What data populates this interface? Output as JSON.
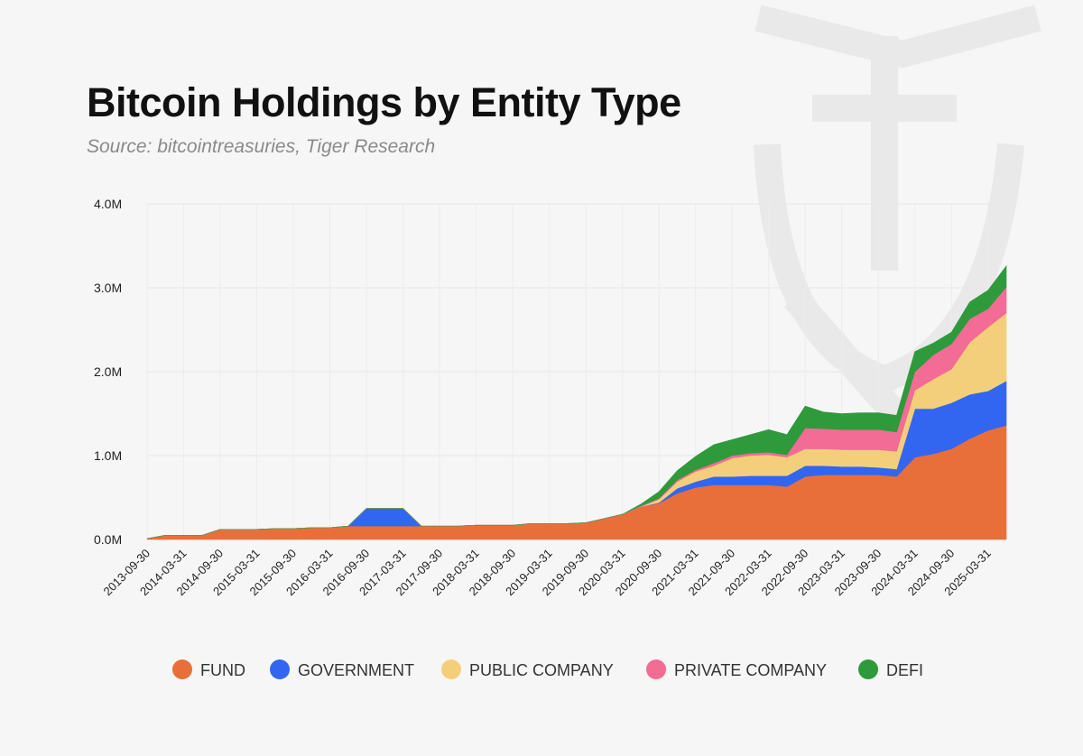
{
  "title": "Bitcoin Holdings by Entity Type",
  "subtitle": "Source: bitcointreasuries, Tiger Research",
  "chart_data": {
    "type": "area",
    "stacked": true,
    "title": "Bitcoin Holdings by Entity Type",
    "subtitle": "Source: bitcointreasuries, Tiger Research",
    "xlabel": "",
    "ylabel": "",
    "ylim": [
      0,
      4000000
    ],
    "y_ticks": [
      "0.0M",
      "1.0M",
      "2.0M",
      "3.0M",
      "4.0M"
    ],
    "x_tick_labels": [
      "2013-09-30",
      "2014-03-31",
      "2014-09-30",
      "2015-03-31",
      "2015-09-30",
      "2016-03-31",
      "2016-09-30",
      "2017-03-31",
      "2017-09-30",
      "2018-03-31",
      "2018-09-30",
      "2019-03-31",
      "2019-09-30",
      "2020-03-31",
      "2020-09-30",
      "2021-03-31",
      "2021-09-30",
      "2022-03-31",
      "2022-09-30",
      "2023-03-31",
      "2023-09-30",
      "2024-03-31",
      "2024-09-30",
      "2025-03-31"
    ],
    "grid": true,
    "legend_position": "bottom",
    "x": [
      "2013-09-30",
      "2013-12-31",
      "2014-03-31",
      "2014-06-30",
      "2014-09-30",
      "2014-12-31",
      "2015-03-31",
      "2015-06-30",
      "2015-09-30",
      "2015-12-31",
      "2016-03-31",
      "2016-06-30",
      "2016-09-30",
      "2016-12-31",
      "2017-03-31",
      "2017-06-30",
      "2017-09-30",
      "2017-12-31",
      "2018-03-31",
      "2018-06-30",
      "2018-09-30",
      "2018-12-31",
      "2019-03-31",
      "2019-06-30",
      "2019-09-30",
      "2019-12-31",
      "2020-03-31",
      "2020-06-30",
      "2020-09-30",
      "2020-12-31",
      "2021-03-31",
      "2021-06-30",
      "2021-09-30",
      "2021-12-31",
      "2022-03-31",
      "2022-06-30",
      "2022-09-30",
      "2022-12-31",
      "2023-03-31",
      "2023-06-30",
      "2023-09-30",
      "2023-12-31",
      "2024-03-31",
      "2024-06-30",
      "2024-09-30",
      "2024-12-31",
      "2025-03-31",
      "2025-06-30"
    ],
    "series": [
      {
        "name": "FUND",
        "color": "#E96F3A",
        "values": [
          10000,
          50000,
          50000,
          50000,
          120000,
          120000,
          120000,
          130000,
          130000,
          140000,
          140000,
          160000,
          160000,
          160000,
          160000,
          160000,
          160000,
          160000,
          170000,
          170000,
          170000,
          190000,
          190000,
          190000,
          200000,
          250000,
          300000,
          390000,
          430000,
          550000,
          620000,
          650000,
          650000,
          650000,
          650000,
          630000,
          750000,
          770000,
          770000,
          770000,
          770000,
          750000,
          980000,
          1020000,
          1080000,
          1200000,
          1300000,
          1360000
        ]
      },
      {
        "name": "GOVERNMENT",
        "color": "#3366F0",
        "values": [
          0,
          0,
          0,
          0,
          0,
          0,
          0,
          0,
          0,
          0,
          0,
          0,
          210000,
          210000,
          210000,
          0,
          0,
          0,
          0,
          0,
          0,
          0,
          0,
          0,
          0,
          0,
          0,
          0,
          10000,
          60000,
          70000,
          100000,
          100000,
          110000,
          110000,
          130000,
          130000,
          110000,
          100000,
          100000,
          90000,
          90000,
          580000,
          540000,
          550000,
          530000,
          470000,
          530000
        ]
      },
      {
        "name": "PUBLIC COMPANY",
        "color": "#F4CF7B",
        "values": [
          0,
          0,
          0,
          0,
          0,
          0,
          0,
          0,
          0,
          0,
          0,
          0,
          0,
          0,
          0,
          0,
          0,
          0,
          0,
          0,
          0,
          0,
          0,
          0,
          0,
          0,
          0,
          0,
          40000,
          80000,
          120000,
          130000,
          220000,
          240000,
          250000,
          220000,
          200000,
          200000,
          200000,
          200000,
          210000,
          210000,
          220000,
          350000,
          400000,
          620000,
          760000,
          810000
        ]
      },
      {
        "name": "PRIVATE COMPANY",
        "color": "#F26C95",
        "values": [
          0,
          0,
          0,
          0,
          0,
          0,
          0,
          0,
          0,
          0,
          0,
          0,
          0,
          0,
          0,
          0,
          0,
          0,
          0,
          0,
          0,
          0,
          0,
          0,
          0,
          0,
          0,
          10000,
          10000,
          20000,
          20000,
          30000,
          30000,
          30000,
          30000,
          30000,
          250000,
          240000,
          240000,
          240000,
          240000,
          230000,
          220000,
          290000,
          300000,
          280000,
          220000,
          310000
        ]
      },
      {
        "name": "DEFI",
        "color": "#2F9A3B",
        "values": [
          0,
          0,
          0,
          0,
          0,
          0,
          0,
          0,
          0,
          0,
          0,
          0,
          0,
          0,
          0,
          0,
          0,
          0,
          0,
          0,
          0,
          0,
          0,
          0,
          0,
          0,
          0,
          20000,
          80000,
          110000,
          160000,
          220000,
          190000,
          220000,
          270000,
          240000,
          260000,
          200000,
          190000,
          200000,
          200000,
          200000,
          240000,
          140000,
          140000,
          200000,
          220000,
          250000
        ]
      }
    ]
  }
}
